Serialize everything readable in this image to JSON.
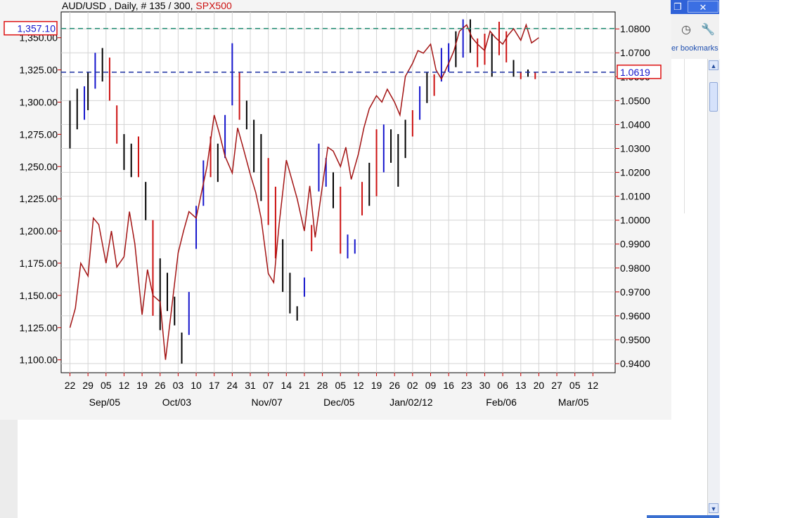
{
  "header": {
    "symbol": "AUD/USD",
    "period": "Daily",
    "count": "# 135 / 300",
    "overlay": "SPX500"
  },
  "window": {
    "restore_icon": "restore-icon",
    "close_icon": "close-icon"
  },
  "toolbar": {
    "history_icon": "history-icon",
    "wrench_icon": "wrench-icon",
    "bookmarks_label": "er bookmarks"
  },
  "colors": {
    "price_up": "#1515cc",
    "price_down": "#000000",
    "price_mixed": "#cc1111",
    "overlay_line": "#a31414",
    "cursor_line": "#1a8a6e",
    "last_line": "#1a2fa0",
    "marker_border": "#dd1111"
  },
  "chart_data": {
    "type": "line",
    "title": "AUD/USD , Daily, # 135 / 300, SPX500",
    "left_axis": {
      "ticks": [
        "1,100.00",
        "1,125.00",
        "1,150.00",
        "1,175.00",
        "1,200.00",
        "1,225.00",
        "1,250.00",
        "1,275.00",
        "1,300.00",
        "1,325.00",
        "1,350.00"
      ],
      "range": [
        1090,
        1370
      ],
      "marker": "1,357.10"
    },
    "right_axis": {
      "ticks": [
        "0.9400",
        "0.9500",
        "0.9600",
        "0.9700",
        "0.9800",
        "0.9900",
        "1.0000",
        "1.0100",
        "1.0200",
        "1.0300",
        "1.0400",
        "1.0500",
        "1.0600",
        "1.0700",
        "1.0800"
      ],
      "range": [
        0.9362,
        1.0871
      ],
      "marker": "1.0619"
    },
    "x_axis": {
      "day_ticks": [
        "22",
        "29",
        "05",
        "12",
        "19",
        "26",
        "03",
        "10",
        "17",
        "24",
        "31",
        "07",
        "14",
        "21",
        "28",
        "05",
        "12",
        "19",
        "26",
        "02",
        "09",
        "16",
        "23",
        "30",
        "06",
        "13",
        "20",
        "27",
        "05",
        "12"
      ],
      "month_labels": [
        "Sep/05",
        "Oct/03",
        "Nov/07",
        "Dec/05",
        "Jan/02/12",
        "Feb/06",
        "Mar/05"
      ],
      "month_tick_index": [
        2,
        6,
        11,
        15,
        19,
        24,
        28
      ]
    },
    "grid": true,
    "levels": {
      "cursor_left": 1357.1,
      "last_right": 1.0619
    },
    "series": [
      {
        "name": "SPX500",
        "kind": "line",
        "axis": "left",
        "x": [
          0,
          0.3,
          0.6,
          1.0,
          1.3,
          1.6,
          2.0,
          2.3,
          2.6,
          3.0,
          3.3,
          3.6,
          4.0,
          4.3,
          4.6,
          5.0,
          5.3,
          5.6,
          6.0,
          6.3,
          6.6,
          7.0,
          7.3,
          7.6,
          8.0,
          8.3,
          8.6,
          9.0,
          9.3,
          9.6,
          10.0,
          10.3,
          10.6,
          11.0,
          11.3,
          11.6,
          12.0,
          12.3,
          12.6,
          13.0,
          13.3,
          13.6,
          14.0,
          14.3,
          14.6,
          15.0,
          15.3,
          15.6,
          16.0,
          16.3,
          16.6,
          17.0,
          17.3,
          17.6,
          18.0,
          18.3,
          18.6,
          19.0,
          19.3,
          19.6,
          20.0,
          20.3,
          20.6,
          21.0,
          21.3,
          21.6,
          22.0,
          22.3,
          22.6,
          23.0,
          23.3,
          23.6,
          24.0,
          24.3,
          24.6,
          25.0,
          25.3,
          25.6,
          26.0
        ],
        "values": [
          1125,
          1140,
          1175,
          1165,
          1210,
          1205,
          1175,
          1200,
          1172,
          1180,
          1215,
          1190,
          1135,
          1170,
          1150,
          1145,
          1100,
          1135,
          1183,
          1200,
          1215,
          1210,
          1230,
          1250,
          1290,
          1275,
          1258,
          1245,
          1280,
          1265,
          1244,
          1230,
          1210,
          1167,
          1160,
          1205,
          1255,
          1240,
          1225,
          1200,
          1235,
          1195,
          1235,
          1265,
          1262,
          1250,
          1265,
          1240,
          1260,
          1280,
          1295,
          1305,
          1300,
          1310,
          1300,
          1290,
          1320,
          1330,
          1340,
          1338,
          1345,
          1325,
          1318,
          1330,
          1340,
          1355,
          1360,
          1350,
          1345,
          1340,
          1355,
          1350,
          1345,
          1352,
          1357,
          1348,
          1360,
          1346,
          1350
        ]
      }
    ],
    "bars": {
      "name": "AUD/USD",
      "axis": "right",
      "x": [
        0,
        0.4,
        0.8,
        1.0,
        1.4,
        1.8,
        2.2,
        2.6,
        3.0,
        3.4,
        3.8,
        4.2,
        4.6,
        5.0,
        5.4,
        5.8,
        6.2,
        6.6,
        7.0,
        7.4,
        7.8,
        8.2,
        8.6,
        9.0,
        9.4,
        9.8,
        10.2,
        10.6,
        11.0,
        11.4,
        11.8,
        12.2,
        12.6,
        13.0,
        13.4,
        13.8,
        14.2,
        14.6,
        15.0,
        15.4,
        15.8,
        16.2,
        16.6,
        17.0,
        17.4,
        17.8,
        18.2,
        18.6,
        19.0,
        19.4,
        19.8,
        20.2,
        20.6,
        21.0,
        21.4,
        21.8,
        22.2,
        22.6,
        23.0,
        23.4,
        23.8,
        24.2,
        24.6,
        25.0,
        25.4,
        25.8,
        26.0
      ],
      "highs": [
        1.05,
        1.055,
        1.056,
        1.062,
        1.07,
        1.072,
        1.068,
        1.048,
        1.036,
        1.032,
        1.035,
        1.016,
        1.0,
        0.984,
        0.978,
        0.968,
        0.953,
        0.97,
        1.006,
        1.025,
        1.035,
        1.032,
        1.044,
        1.074,
        1.062,
        1.05,
        1.042,
        1.036,
        1.026,
        1.014,
        0.992,
        0.978,
        0.964,
        0.976,
        0.998,
        1.032,
        1.026,
        1.02,
        1.014,
        0.994,
        0.992,
        1.016,
        1.024,
        1.038,
        1.04,
        1.038,
        1.036,
        1.042,
        1.046,
        1.056,
        1.062,
        1.061,
        1.072,
        1.074,
        1.079,
        1.084,
        1.084,
        1.076,
        1.078,
        1.078,
        1.083,
        1.079,
        1.067,
        1.062,
        1.063,
        1.062,
        1.061
      ],
      "lows": [
        1.03,
        1.038,
        1.042,
        1.046,
        1.055,
        1.058,
        1.05,
        1.032,
        1.021,
        1.018,
        1.018,
        1.0,
        0.96,
        0.954,
        0.962,
        0.956,
        0.94,
        0.952,
        0.988,
        1.006,
        1.018,
        1.016,
        1.026,
        1.048,
        1.042,
        1.038,
        1.02,
        1.008,
        0.998,
        0.984,
        0.97,
        0.961,
        0.958,
        0.968,
        0.987,
        1.012,
        1.014,
        1.005,
        0.986,
        0.984,
        0.986,
        1.002,
        1.006,
        1.01,
        1.02,
        1.024,
        1.014,
        1.026,
        1.035,
        1.042,
        1.049,
        1.052,
        1.058,
        1.062,
        1.064,
        1.068,
        1.07,
        1.064,
        1.065,
        1.06,
        1.069,
        1.066,
        1.06,
        1.059,
        1.06,
        1.059,
        1.061
      ],
      "colors": [
        "down",
        "down",
        "up",
        "down",
        "up",
        "down",
        "mixed",
        "mixed",
        "down",
        "down",
        "mixed",
        "down",
        "mixed",
        "down",
        "down",
        "down",
        "down",
        "up",
        "up",
        "up",
        "mixed",
        "down",
        "up",
        "up",
        "mixed",
        "down",
        "down",
        "down",
        "mixed",
        "mixed",
        "down",
        "down",
        "down",
        "up",
        "mixed",
        "up",
        "up",
        "down",
        "mixed",
        "up",
        "up",
        "mixed",
        "down",
        "mixed",
        "up",
        "down",
        "down",
        "down",
        "mixed",
        "up",
        "down",
        "mixed",
        "up",
        "up",
        "down",
        "up",
        "down",
        "mixed",
        "mixed",
        "down",
        "mixed",
        "mixed",
        "down",
        "mixed",
        "down",
        "mixed",
        "mixed"
      ]
    }
  }
}
